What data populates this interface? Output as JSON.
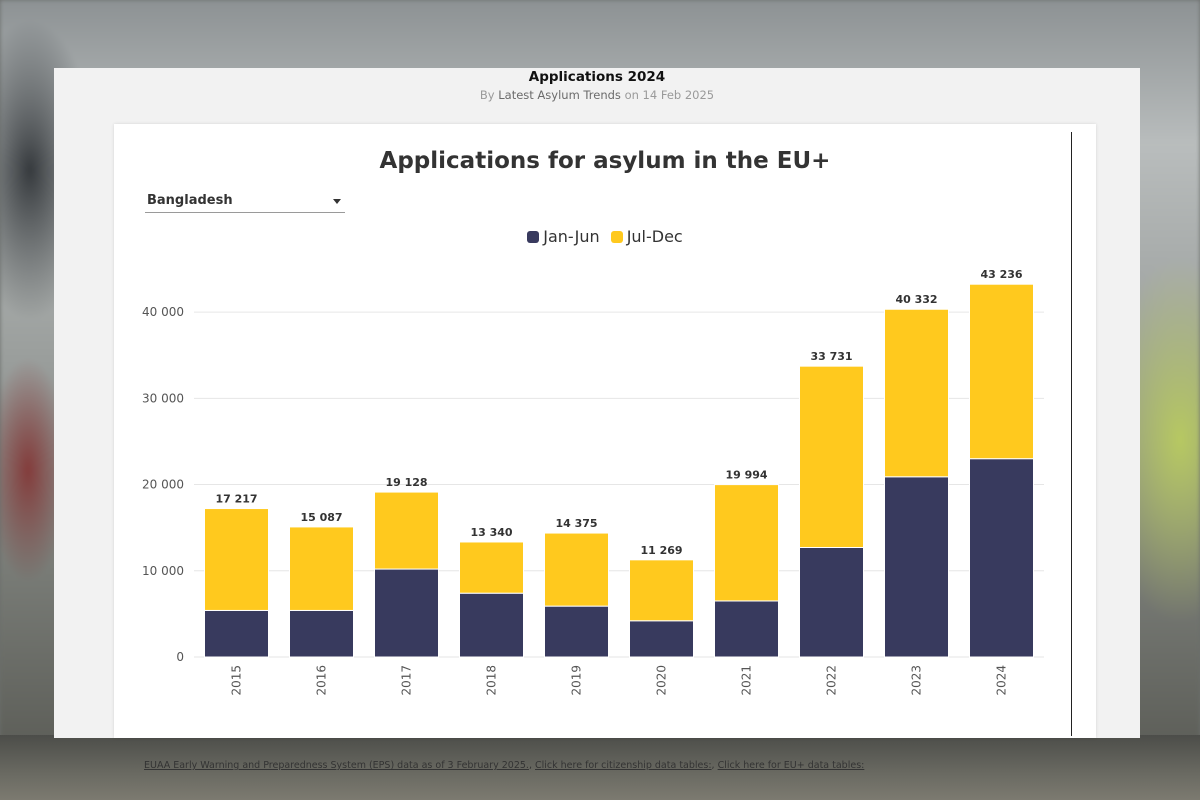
{
  "page": {
    "title": "Applications 2024",
    "byline_prefix": "By",
    "byline_author": "Latest Asylum Trends",
    "byline_suffix": "on 14 Feb 2025"
  },
  "filter": {
    "selected": "Bangladesh"
  },
  "colors": {
    "jan_jun": "#383a5e",
    "jul_dec": "#ffc91e"
  },
  "sources": {
    "eps_link": "EUAA Early Warning and Preparedness System (EPS) data as of 3 February 2025.",
    "sep1": ",",
    "citizenship_link": "Click here for citizenship data tables:",
    "sep2": ",",
    "eu_link": "Click here for EU+ data tables:"
  },
  "chart_data": {
    "type": "bar",
    "stacked": true,
    "title": "Applications for asylum in the EU+",
    "categories": [
      "2015",
      "2016",
      "2017",
      "2018",
      "2019",
      "2020",
      "2021",
      "2022",
      "2023",
      "2024"
    ],
    "series": [
      {
        "name": "Jan-Jun",
        "values": [
          5400,
          5400,
          10200,
          7400,
          5900,
          4200,
          6500,
          12700,
          20900,
          23000
        ]
      },
      {
        "name": "Jul-Dec",
        "values": [
          11817,
          9687,
          8928,
          5940,
          8475,
          7069,
          13494,
          21031,
          19432,
          20236
        ]
      }
    ],
    "totals": [
      "17 217",
      "15 087",
      "19 128",
      "13 340",
      "14 375",
      "11 269",
      "19 994",
      "33 731",
      "40 332",
      "43 236"
    ],
    "y_ticks": [
      0,
      10000,
      20000,
      30000,
      40000
    ],
    "y_tick_labels": [
      "0",
      "10 000",
      "20 000",
      "30 000",
      "40 000"
    ],
    "ylim": [
      0,
      45000
    ],
    "xlabel": "",
    "ylabel": "",
    "legend_position": "top",
    "grid": true
  }
}
